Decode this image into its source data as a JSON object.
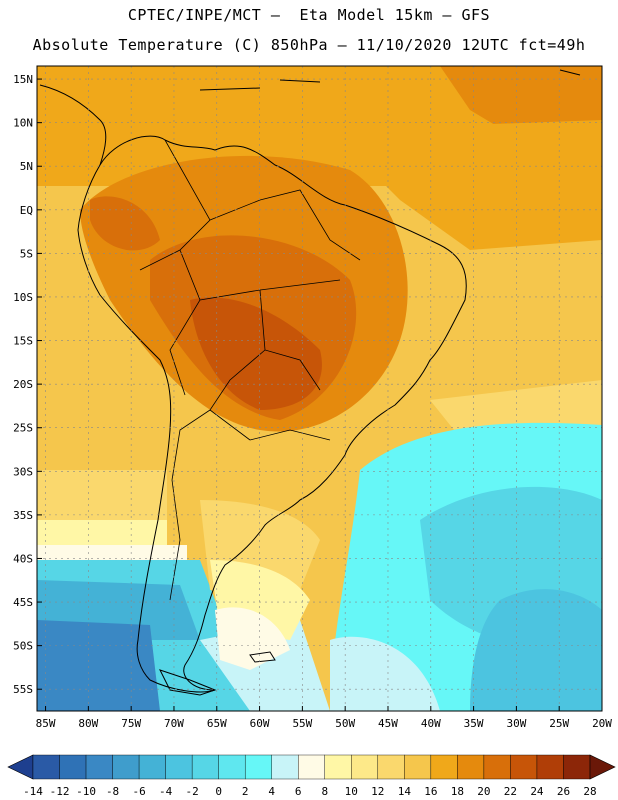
{
  "header": {
    "line1": "CPTEC/INPE/MCT –  Eta Model 15km – GFS",
    "line2": "Absolute Temperature (C) 850hPa – 11/10/2020 12UTC fct=49h"
  },
  "axes": {
    "lat_ticks": [
      "15N",
      "10N",
      "5N",
      "EQ",
      "5S",
      "10S",
      "15S",
      "20S",
      "25S",
      "30S",
      "35S",
      "40S",
      "45S",
      "50S",
      "55S"
    ],
    "lon_ticks": [
      "85W",
      "80W",
      "75W",
      "70W",
      "65W",
      "60W",
      "55W",
      "50W",
      "45W",
      "40W",
      "35W",
      "30W",
      "25W",
      "20W"
    ],
    "lat_range": [
      16.5,
      -57.5
    ],
    "lon_range": [
      -86,
      -20
    ]
  },
  "colorbar": {
    "labels": [
      "-14",
      "-12",
      "-10",
      "-8",
      "-6",
      "-4",
      "-2",
      "0",
      "2",
      "4",
      "6",
      "8",
      "10",
      "12",
      "14",
      "16",
      "18",
      "20",
      "22",
      "24",
      "26",
      "28"
    ],
    "colors": [
      "#1e3f8f",
      "#2a5aa6",
      "#2f72b6",
      "#3a88c4",
      "#3f9dcc",
      "#44b2d6",
      "#4cc4e0",
      "#56d6e6",
      "#5fe7ef",
      "#66f7f7",
      "#c8f4f8",
      "#fffbe6",
      "#fff7a6",
      "#fde989",
      "#fad86d",
      "#f5c64c",
      "#f0a81a",
      "#e58a0d",
      "#d86f0a",
      "#c75508",
      "#b03e07",
      "#8c2608",
      "#6a1808"
    ]
  }
}
